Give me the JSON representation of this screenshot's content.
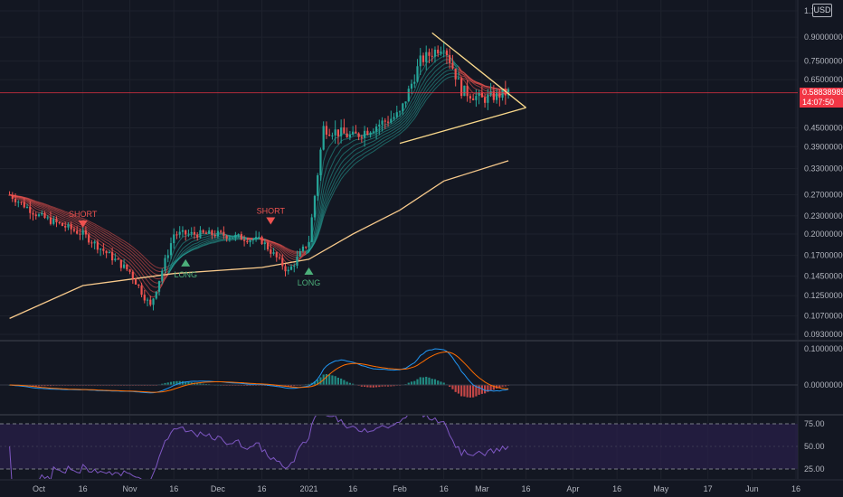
{
  "currency": "USD",
  "last_price": {
    "value": "0.58838989",
    "countdown": "14:07:50",
    "numeric": 0.5884
  },
  "chart_data": [
    {
      "type": "candlestick",
      "panel": "price",
      "scale": "log",
      "y_ticks": [
        "1.1",
        "0.90000000",
        "0.75000000",
        "0.65000000",
        "0.45000000",
        "0.39000000",
        "0.33000000",
        "0.27000000",
        "0.23000000",
        "0.20000000",
        "0.17000000",
        "0.14500000",
        "0.12500000",
        "0.10700000",
        "0.09300000"
      ],
      "y_tick_values": [
        1.1,
        0.9,
        0.75,
        0.65,
        0.45,
        0.39,
        0.33,
        0.27,
        0.23,
        0.2,
        0.17,
        0.145,
        0.125,
        0.107,
        0.093
      ],
      "x_ticks": [
        "Oct",
        "16",
        "Nov",
        "16",
        "Dec",
        "16",
        "2021",
        "16",
        "Feb",
        "16",
        "Mar",
        "16",
        "Apr",
        "16",
        "May",
        "17",
        "Jun",
        "16"
      ],
      "x_tick_dates": [
        "2020-10-01",
        "2020-10-16",
        "2020-11-01",
        "2020-11-16",
        "2020-12-01",
        "2020-12-16",
        "2021-01-01",
        "2021-01-16",
        "2021-02-01",
        "2021-02-16",
        "2021-03-01",
        "2021-03-16",
        "2021-04-01",
        "2021-04-16",
        "2021-05-01",
        "2021-05-17",
        "2021-06-01",
        "2021-06-16"
      ],
      "series_approx": [
        {
          "date": "2020-09-21",
          "close": 0.27
        },
        {
          "date": "2020-10-01",
          "close": 0.23
        },
        {
          "date": "2020-10-16",
          "close": 0.2
        },
        {
          "date": "2020-11-01",
          "close": 0.15
        },
        {
          "date": "2020-11-08",
          "close": 0.115
        },
        {
          "date": "2020-11-16",
          "close": 0.2
        },
        {
          "date": "2020-12-01",
          "close": 0.2
        },
        {
          "date": "2020-12-16",
          "close": 0.19
        },
        {
          "date": "2020-12-25",
          "close": 0.15
        },
        {
          "date": "2021-01-01",
          "close": 0.19
        },
        {
          "date": "2021-01-06",
          "close": 0.45
        },
        {
          "date": "2021-01-16",
          "close": 0.42
        },
        {
          "date": "2021-02-01",
          "close": 0.5
        },
        {
          "date": "2021-02-08",
          "close": 0.75
        },
        {
          "date": "2021-02-16",
          "close": 0.85
        },
        {
          "date": "2021-02-22",
          "close": 0.6
        },
        {
          "date": "2021-03-01",
          "close": 0.56
        },
        {
          "date": "2021-03-10",
          "close": 0.59
        }
      ],
      "long_ma_approx": [
        {
          "date": "2020-09-21",
          "value": 0.105
        },
        {
          "date": "2020-10-16",
          "value": 0.135
        },
        {
          "date": "2020-11-16",
          "value": 0.148
        },
        {
          "date": "2020-12-16",
          "value": 0.155
        },
        {
          "date": "2021-01-01",
          "value": 0.165
        },
        {
          "date": "2021-01-16",
          "value": 0.2
        },
        {
          "date": "2021-02-01",
          "value": 0.24
        },
        {
          "date": "2021-02-16",
          "value": 0.3
        },
        {
          "date": "2021-03-10",
          "value": 0.35
        }
      ],
      "signals": [
        {
          "label": "SHORT",
          "date": "2020-10-16",
          "price": 0.21,
          "direction": "down"
        },
        {
          "label": "LONG",
          "date": "2020-11-20",
          "price": 0.165,
          "direction": "up"
        },
        {
          "label": "SHORT",
          "date": "2020-12-19",
          "price": 0.215,
          "direction": "down"
        },
        {
          "label": "LONG",
          "date": "2021-01-01",
          "price": 0.155,
          "direction": "up"
        }
      ],
      "triangle": {
        "upper": [
          {
            "date": "2021-02-12",
            "price": 0.93
          },
          {
            "date": "2021-03-12",
            "price": 0.6
          }
        ],
        "apex": {
          "date": "2021-03-16",
          "price": 0.525
        },
        "lower": [
          {
            "date": "2021-02-01",
            "price": 0.4
          },
          {
            "date": "2021-03-16",
            "price": 0.525
          }
        ]
      },
      "colors": {
        "up": "#26a69a",
        "down": "#ef5350",
        "long_ma": "#f7c98b",
        "triangle": "#f9d88b",
        "ribbon_green": "#26a69a",
        "ribbon_red": "#ef5350",
        "last_price": "#f23645"
      }
    },
    {
      "type": "line",
      "panel": "macd",
      "y_ticks": [
        "0.10000000",
        "0.00000000"
      ],
      "y_tick_values": [
        0.1,
        0.0
      ],
      "colors": {
        "macd": "#2196f3",
        "signal": "#ff6d00"
      }
    },
    {
      "type": "line",
      "panel": "rsi",
      "y_ticks": [
        "75.00",
        "50.00",
        "25.00"
      ],
      "y_tick_values": [
        75,
        50,
        25
      ],
      "colors": {
        "rsi": "#7e57c2",
        "band": "#2a1f4a"
      }
    }
  ]
}
